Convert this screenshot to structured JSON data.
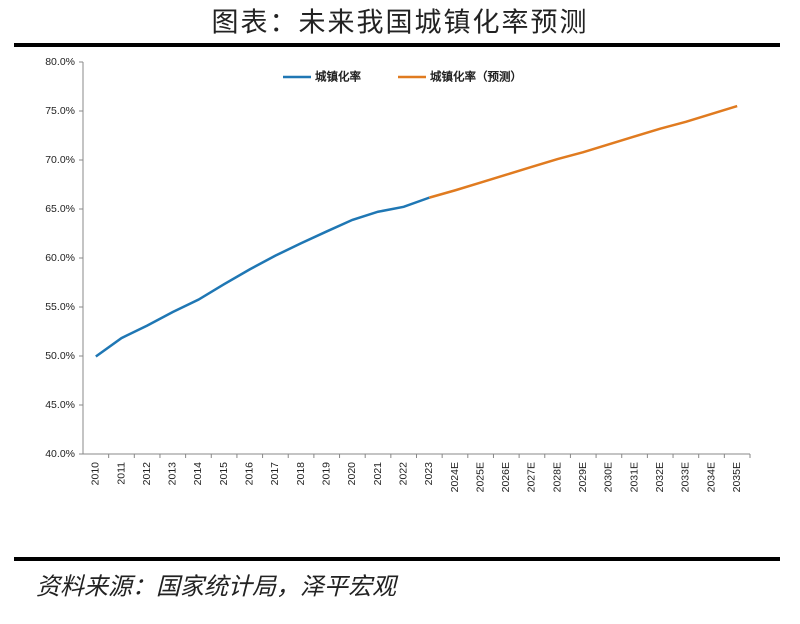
{
  "chart_data": {
    "type": "line",
    "title": "图表：未来我国城镇化率预测",
    "source": "资料来源：国家统计局，泽平宏观",
    "categories": [
      "2010",
      "2011",
      "2012",
      "2013",
      "2014",
      "2015",
      "2016",
      "2017",
      "2018",
      "2019",
      "2020",
      "2021",
      "2022",
      "2023",
      "2024E",
      "2025E",
      "2026E",
      "2027E",
      "2028E",
      "2029E",
      "2030E",
      "2031E",
      "2032E",
      "2033E",
      "2034E",
      "2035E"
    ],
    "series": [
      {
        "name": "城镇化率",
        "color": "#1f77b4",
        "values": [
          49.95,
          51.83,
          53.1,
          54.49,
          55.75,
          57.33,
          58.84,
          60.24,
          61.5,
          62.71,
          63.89,
          64.72,
          65.22,
          66.16,
          null,
          null,
          null,
          null,
          null,
          null,
          null,
          null,
          null,
          null,
          null,
          null
        ]
      },
      {
        "name": "城镇化率（预测）",
        "color": "#e07b20",
        "values": [
          null,
          null,
          null,
          null,
          null,
          null,
          null,
          null,
          null,
          null,
          null,
          null,
          null,
          66.16,
          66.9,
          67.7,
          68.5,
          69.3,
          70.1,
          70.8,
          71.6,
          72.4,
          73.2,
          73.9,
          74.7,
          75.5
        ]
      }
    ],
    "ylim": [
      40,
      80
    ],
    "yticks": [
      {
        "value": 40,
        "label": "40.0%"
      },
      {
        "value": 45,
        "label": "45.0%"
      },
      {
        "value": 50,
        "label": "50.0%"
      },
      {
        "value": 55,
        "label": "55.0%"
      },
      {
        "value": 60,
        "label": "60.0%"
      },
      {
        "value": 65,
        "label": "65.0%"
      },
      {
        "value": 70,
        "label": "70.0%"
      },
      {
        "value": 75,
        "label": "75.0%"
      },
      {
        "value": 80,
        "label": "80.0%"
      }
    ],
    "grid": false
  }
}
